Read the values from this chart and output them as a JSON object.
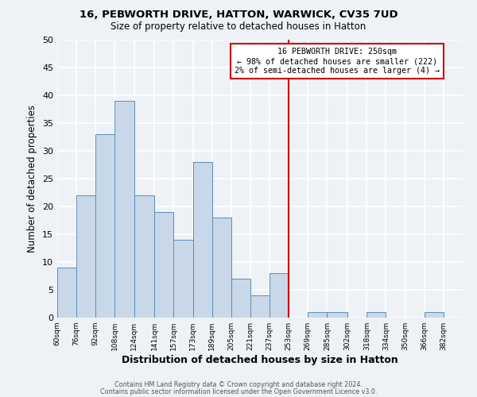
{
  "title1": "16, PEBWORTH DRIVE, HATTON, WARWICK, CV35 7UD",
  "title2": "Size of property relative to detached houses in Hatton",
  "xlabel": "Distribution of detached houses by size in Hatton",
  "ylabel": "Number of detached properties",
  "bin_labels": [
    "60sqm",
    "76sqm",
    "92sqm",
    "108sqm",
    "124sqm",
    "141sqm",
    "157sqm",
    "173sqm",
    "189sqm",
    "205sqm",
    "221sqm",
    "237sqm",
    "253sqm",
    "269sqm",
    "285sqm",
    "302sqm",
    "318sqm",
    "334sqm",
    "350sqm",
    "366sqm",
    "382sqm"
  ],
  "bin_edges": [
    60,
    76,
    92,
    108,
    124,
    141,
    157,
    173,
    189,
    205,
    221,
    237,
    253,
    269,
    285,
    302,
    318,
    334,
    350,
    366,
    382,
    398
  ],
  "counts": [
    9,
    22,
    33,
    39,
    22,
    19,
    14,
    28,
    18,
    7,
    4,
    8,
    0,
    1,
    1,
    0,
    1,
    0,
    0,
    1,
    0
  ],
  "bar_color": "#c8d8e8",
  "bar_edge_color": "#5b8db8",
  "vline_x": 253,
  "vline_color": "#cc0000",
  "annotation_title": "16 PEBWORTH DRIVE: 250sqm",
  "annotation_line1": "← 98% of detached houses are smaller (222)",
  "annotation_line2": "2% of semi-detached houses are larger (4) →",
  "annotation_box_edge": "#cc0000",
  "ylim": [
    0,
    50
  ],
  "yticks": [
    0,
    5,
    10,
    15,
    20,
    25,
    30,
    35,
    40,
    45,
    50
  ],
  "background_color": "#eef2f7",
  "grid_color": "#ffffff",
  "footer1": "Contains HM Land Registry data © Crown copyright and database right 2024.",
  "footer2": "Contains public sector information licensed under the Open Government Licence v3.0."
}
